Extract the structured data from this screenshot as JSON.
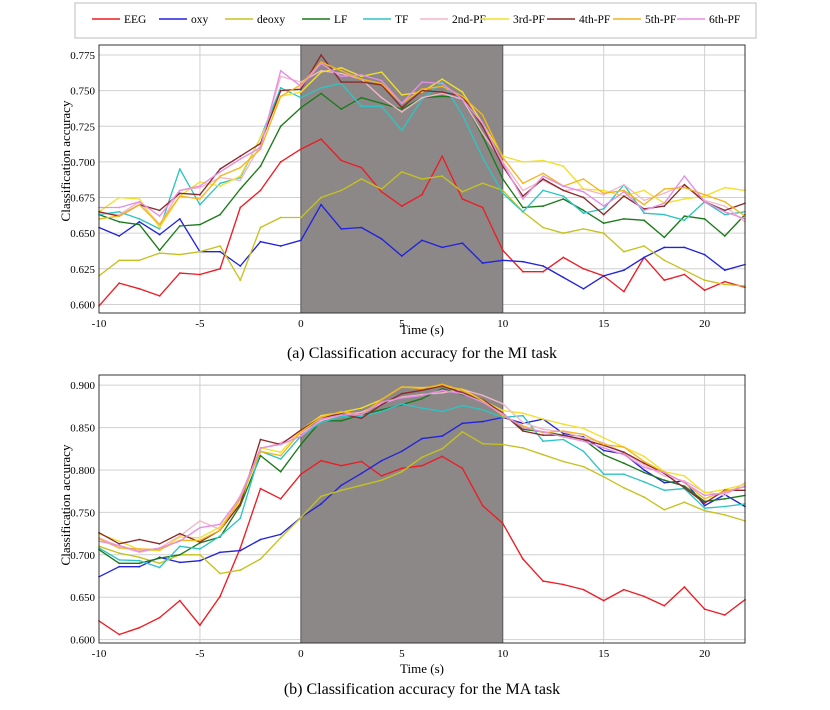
{
  "legend": [
    {
      "name": "EEG",
      "color": "#ee1c24"
    },
    {
      "name": "oxy",
      "color": "#2222dd"
    },
    {
      "name": "deoxy",
      "color": "#c5c21f"
    },
    {
      "name": "LF",
      "color": "#1a7a1a"
    },
    {
      "name": "TF",
      "color": "#2ec4c4"
    },
    {
      "name": "2nd-PF",
      "color": "#f4b6c8"
    },
    {
      "name": "3rd-PF",
      "color": "#f2e02a"
    },
    {
      "name": "4th-PF",
      "color": "#8b2a2a"
    },
    {
      "name": "5th-PF",
      "color": "#f4b41c"
    },
    {
      "name": "6th-PF",
      "color": "#e58ee5"
    }
  ],
  "chart_data": [
    {
      "type": "line",
      "caption": "(a) Classification accuracy for the MI task",
      "xlabel": "Time (s)",
      "ylabel": "Classification accuracy",
      "xlim": [
        -10,
        22
      ],
      "ylim": [
        0.594,
        0.782
      ],
      "xticks": [
        "-10",
        "-5",
        "0",
        "5",
        "10",
        "15",
        "20"
      ],
      "xtick_values": [
        -10,
        -5,
        0,
        5,
        10,
        15,
        20
      ],
      "yticks": [
        "0.600",
        "0.625",
        "0.650",
        "0.675",
        "0.700",
        "0.725",
        "0.750",
        "0.775"
      ],
      "ytick_values": [
        0.6,
        0.625,
        0.65,
        0.675,
        0.7,
        0.725,
        0.75,
        0.775
      ],
      "shaded_region": [
        0,
        10
      ],
      "grid": true,
      "legend_position": "top",
      "x": [
        -10,
        -9,
        -8,
        -7,
        -6,
        -5,
        -4,
        -3,
        -2,
        -1,
        0,
        1,
        2,
        3,
        4,
        5,
        6,
        7,
        8,
        9,
        10,
        11,
        12,
        13,
        14,
        15,
        16,
        17,
        18,
        19,
        20,
        21,
        22
      ],
      "series": [
        {
          "name": "EEG",
          "color": "#ee1c24",
          "values": [
            0.599,
            0.615,
            0.611,
            0.606,
            0.622,
            0.621,
            0.625,
            0.668,
            0.68,
            0.7,
            0.709,
            0.716,
            0.701,
            0.696,
            0.679,
            0.669,
            0.677,
            0.704,
            0.674,
            0.668,
            0.638,
            0.623,
            0.623,
            0.633,
            0.625,
            0.62,
            0.609,
            0.633,
            0.617,
            0.621,
            0.61,
            0.616,
            0.612
          ]
        },
        {
          "name": "oxy",
          "color": "#2222dd",
          "values": [
            0.654,
            0.648,
            0.658,
            0.649,
            0.66,
            0.637,
            0.637,
            0.627,
            0.644,
            0.641,
            0.645,
            0.67,
            0.653,
            0.654,
            0.646,
            0.634,
            0.645,
            0.64,
            0.643,
            0.629,
            0.631,
            0.63,
            0.627,
            0.619,
            0.611,
            0.62,
            0.624,
            0.633,
            0.64,
            0.64,
            0.635,
            0.624,
            0.628
          ]
        },
        {
          "name": "deoxy",
          "color": "#c5c21f",
          "values": [
            0.62,
            0.631,
            0.631,
            0.636,
            0.635,
            0.637,
            0.641,
            0.617,
            0.654,
            0.661,
            0.661,
            0.675,
            0.68,
            0.688,
            0.681,
            0.693,
            0.688,
            0.69,
            0.679,
            0.685,
            0.68,
            0.665,
            0.654,
            0.65,
            0.653,
            0.65,
            0.637,
            0.641,
            0.631,
            0.624,
            0.617,
            0.614,
            0.613
          ]
        },
        {
          "name": "LF",
          "color": "#1a7a1a",
          "values": [
            0.663,
            0.658,
            0.656,
            0.638,
            0.655,
            0.656,
            0.663,
            0.681,
            0.697,
            0.725,
            0.738,
            0.748,
            0.737,
            0.745,
            0.741,
            0.737,
            0.745,
            0.746,
            0.745,
            0.718,
            0.688,
            0.668,
            0.669,
            0.674,
            0.666,
            0.657,
            0.66,
            0.659,
            0.647,
            0.662,
            0.66,
            0.648,
            0.663
          ]
        },
        {
          "name": "TF",
          "color": "#2ec4c4",
          "values": [
            0.663,
            0.665,
            0.66,
            0.653,
            0.695,
            0.67,
            0.685,
            0.689,
            0.717,
            0.752,
            0.745,
            0.752,
            0.755,
            0.739,
            0.739,
            0.722,
            0.744,
            0.756,
            0.733,
            0.703,
            0.678,
            0.665,
            0.68,
            0.676,
            0.664,
            0.667,
            0.684,
            0.664,
            0.663,
            0.659,
            0.672,
            0.663,
            0.665
          ]
        },
        {
          "name": "2nd-PF",
          "color": "#f4b6c8",
          "values": [
            0.664,
            0.663,
            0.672,
            0.656,
            0.68,
            0.682,
            0.689,
            0.687,
            0.712,
            0.76,
            0.756,
            0.764,
            0.762,
            0.758,
            0.745,
            0.735,
            0.745,
            0.748,
            0.744,
            0.72,
            0.7,
            0.68,
            0.687,
            0.68,
            0.681,
            0.677,
            0.684,
            0.673,
            0.678,
            0.684,
            0.673,
            0.669,
            0.658
          ]
        },
        {
          "name": "3rd-PF",
          "color": "#f2e02a",
          "values": [
            0.665,
            0.675,
            0.674,
            0.654,
            0.676,
            0.686,
            0.683,
            0.69,
            0.717,
            0.746,
            0.749,
            0.763,
            0.766,
            0.76,
            0.763,
            0.747,
            0.749,
            0.758,
            0.749,
            0.727,
            0.704,
            0.7,
            0.701,
            0.697,
            0.681,
            0.68,
            0.676,
            0.68,
            0.671,
            0.674,
            0.676,
            0.682,
            0.68
          ]
        },
        {
          "name": "4th-PF",
          "color": "#8b2a2a",
          "values": [
            0.665,
            0.662,
            0.67,
            0.666,
            0.678,
            0.677,
            0.695,
            0.704,
            0.713,
            0.75,
            0.751,
            0.775,
            0.756,
            0.756,
            0.754,
            0.738,
            0.75,
            0.749,
            0.746,
            0.725,
            0.697,
            0.676,
            0.688,
            0.68,
            0.675,
            0.663,
            0.676,
            0.667,
            0.669,
            0.684,
            0.672,
            0.666,
            0.671
          ]
        },
        {
          "name": "5th-PF",
          "color": "#f4b41c",
          "values": [
            0.66,
            0.662,
            0.67,
            0.656,
            0.676,
            0.674,
            0.69,
            0.696,
            0.709,
            0.746,
            0.754,
            0.77,
            0.764,
            0.758,
            0.755,
            0.741,
            0.751,
            0.753,
            0.746,
            0.733,
            0.703,
            0.685,
            0.692,
            0.683,
            0.688,
            0.678,
            0.68,
            0.67,
            0.681,
            0.682,
            0.677,
            0.672,
            0.662
          ]
        },
        {
          "name": "6th-PF",
          "color": "#e58ee5",
          "values": [
            0.668,
            0.668,
            0.672,
            0.662,
            0.68,
            0.683,
            0.693,
            0.702,
            0.71,
            0.764,
            0.753,
            0.769,
            0.76,
            0.761,
            0.757,
            0.741,
            0.756,
            0.755,
            0.744,
            0.727,
            0.699,
            0.674,
            0.69,
            0.683,
            0.679,
            0.669,
            0.679,
            0.666,
            0.671,
            0.69,
            0.672,
            0.665,
            0.66
          ]
        }
      ]
    },
    {
      "type": "line",
      "caption": "(b) Classification accuracy for the MA task",
      "xlabel": "Time (s)",
      "ylabel": "Classification accuracy",
      "xlim": [
        -10,
        22
      ],
      "ylim": [
        0.596,
        0.912
      ],
      "xticks": [
        "-10",
        "-5",
        "0",
        "5",
        "10",
        "15",
        "20"
      ],
      "xtick_values": [
        -10,
        -5,
        0,
        5,
        10,
        15,
        20
      ],
      "yticks": [
        "0.600",
        "0.650",
        "0.700",
        "0.750",
        "0.800",
        "0.850",
        "0.900"
      ],
      "ytick_values": [
        0.6,
        0.65,
        0.7,
        0.75,
        0.8,
        0.85,
        0.9
      ],
      "shaded_region": [
        0,
        10
      ],
      "grid": true,
      "legend_position": "top",
      "x": [
        -10,
        -9,
        -8,
        -7,
        -6,
        -5,
        -4,
        -3,
        -2,
        -1,
        0,
        1,
        2,
        3,
        4,
        5,
        6,
        7,
        8,
        9,
        10,
        11,
        12,
        13,
        14,
        15,
        16,
        17,
        18,
        19,
        20,
        21,
        22
      ],
      "series": [
        {
          "name": "EEG",
          "color": "#ee1c24",
          "values": [
            0.622,
            0.606,
            0.614,
            0.626,
            0.646,
            0.617,
            0.651,
            0.708,
            0.778,
            0.766,
            0.795,
            0.811,
            0.805,
            0.81,
            0.793,
            0.802,
            0.805,
            0.816,
            0.802,
            0.758,
            0.737,
            0.695,
            0.669,
            0.665,
            0.659,
            0.646,
            0.659,
            0.651,
            0.64,
            0.662,
            0.636,
            0.629,
            0.647
          ]
        },
        {
          "name": "oxy",
          "color": "#2222dd",
          "values": [
            0.674,
            0.686,
            0.686,
            0.697,
            0.691,
            0.693,
            0.703,
            0.705,
            0.718,
            0.724,
            0.744,
            0.76,
            0.782,
            0.796,
            0.811,
            0.822,
            0.837,
            0.84,
            0.855,
            0.857,
            0.862,
            0.855,
            0.86,
            0.843,
            0.839,
            0.823,
            0.819,
            0.8,
            0.785,
            0.787,
            0.758,
            0.771,
            0.757
          ]
        },
        {
          "name": "deoxy",
          "color": "#c5c21f",
          "values": [
            0.71,
            0.702,
            0.697,
            0.69,
            0.7,
            0.7,
            0.678,
            0.682,
            0.695,
            0.72,
            0.744,
            0.769,
            0.776,
            0.782,
            0.788,
            0.798,
            0.815,
            0.825,
            0.845,
            0.831,
            0.83,
            0.826,
            0.818,
            0.81,
            0.804,
            0.792,
            0.779,
            0.768,
            0.753,
            0.762,
            0.752,
            0.747,
            0.74
          ]
        },
        {
          "name": "LF",
          "color": "#1a7a1a",
          "values": [
            0.706,
            0.69,
            0.69,
            0.696,
            0.7,
            0.714,
            0.721,
            0.758,
            0.817,
            0.798,
            0.83,
            0.858,
            0.858,
            0.865,
            0.871,
            0.877,
            0.884,
            0.896,
            0.889,
            0.883,
            0.866,
            0.848,
            0.845,
            0.841,
            0.836,
            0.818,
            0.808,
            0.797,
            0.788,
            0.781,
            0.763,
            0.766,
            0.77
          ]
        },
        {
          "name": "TF",
          "color": "#2ec4c4",
          "values": [
            0.708,
            0.694,
            0.693,
            0.685,
            0.71,
            0.707,
            0.722,
            0.743,
            0.822,
            0.813,
            0.84,
            0.856,
            0.863,
            0.863,
            0.869,
            0.878,
            0.873,
            0.869,
            0.876,
            0.871,
            0.862,
            0.864,
            0.834,
            0.836,
            0.822,
            0.795,
            0.795,
            0.786,
            0.776,
            0.778,
            0.755,
            0.757,
            0.76
          ]
        },
        {
          "name": "2nd-PF",
          "color": "#f4b6c8",
          "values": [
            0.72,
            0.71,
            0.703,
            0.708,
            0.722,
            0.74,
            0.73,
            0.77,
            0.825,
            0.832,
            0.843,
            0.858,
            0.865,
            0.868,
            0.878,
            0.886,
            0.889,
            0.891,
            0.895,
            0.888,
            0.878,
            0.856,
            0.848,
            0.845,
            0.838,
            0.832,
            0.82,
            0.806,
            0.793,
            0.787,
            0.774,
            0.77,
            0.785
          ]
        },
        {
          "name": "3rd-PF",
          "color": "#f2e02a",
          "values": [
            0.725,
            0.716,
            0.706,
            0.705,
            0.721,
            0.72,
            0.733,
            0.762,
            0.826,
            0.821,
            0.847,
            0.864,
            0.868,
            0.873,
            0.883,
            0.898,
            0.897,
            0.899,
            0.895,
            0.882,
            0.87,
            0.867,
            0.86,
            0.854,
            0.849,
            0.838,
            0.827,
            0.816,
            0.798,
            0.793,
            0.773,
            0.777,
            0.783
          ]
        },
        {
          "name": "4th-PF",
          "color": "#8b2a2a",
          "values": [
            0.726,
            0.713,
            0.718,
            0.713,
            0.725,
            0.715,
            0.729,
            0.76,
            0.836,
            0.83,
            0.847,
            0.862,
            0.866,
            0.861,
            0.877,
            0.89,
            0.894,
            0.899,
            0.891,
            0.883,
            0.867,
            0.846,
            0.841,
            0.841,
            0.836,
            0.829,
            0.821,
            0.808,
            0.796,
            0.779,
            0.761,
            0.776,
            0.776
          ]
        },
        {
          "name": "5th-PF",
          "color": "#f4b41c",
          "values": [
            0.719,
            0.708,
            0.707,
            0.706,
            0.717,
            0.717,
            0.729,
            0.766,
            0.822,
            0.817,
            0.845,
            0.862,
            0.869,
            0.865,
            0.883,
            0.898,
            0.896,
            0.901,
            0.894,
            0.882,
            0.864,
            0.852,
            0.844,
            0.846,
            0.842,
            0.83,
            0.827,
            0.81,
            0.797,
            0.785,
            0.766,
            0.775,
            0.78
          ]
        },
        {
          "name": "6th-PF",
          "color": "#e58ee5",
          "values": [
            0.716,
            0.711,
            0.704,
            0.708,
            0.716,
            0.732,
            0.736,
            0.768,
            0.826,
            0.83,
            0.84,
            0.86,
            0.865,
            0.865,
            0.88,
            0.885,
            0.888,
            0.894,
            0.89,
            0.88,
            0.866,
            0.85,
            0.845,
            0.839,
            0.834,
            0.826,
            0.818,
            0.803,
            0.797,
            0.785,
            0.77,
            0.773,
            0.781
          ]
        }
      ]
    }
  ]
}
